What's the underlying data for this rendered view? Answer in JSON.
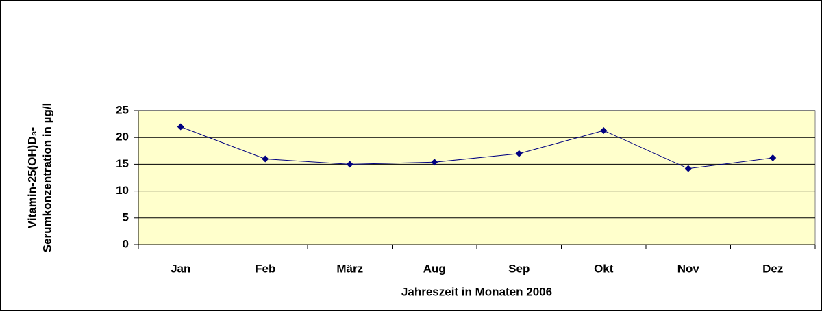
{
  "chart_data": {
    "type": "line",
    "x_label": "Jahreszeit in Monaten 2006",
    "y_label": [
      "Vitamin-25(OH)D₃-",
      "Serumkonzentration in  µg/l"
    ],
    "categories": [
      "Jan",
      "Feb",
      "März",
      "Aug",
      "Sep",
      "Okt",
      "Nov",
      "Dez"
    ],
    "series": [
      {
        "name": "Vitamin-25(OH)D3",
        "color": "#000080",
        "values": [
          22,
          16,
          15,
          15.4,
          17,
          21.3,
          14.2,
          16.2
        ]
      }
    ],
    "ylim": [
      0,
      25
    ],
    "yticks": [
      0,
      5,
      10,
      15,
      20,
      25
    ],
    "grid": true,
    "plot_background": "#ffffcc"
  }
}
